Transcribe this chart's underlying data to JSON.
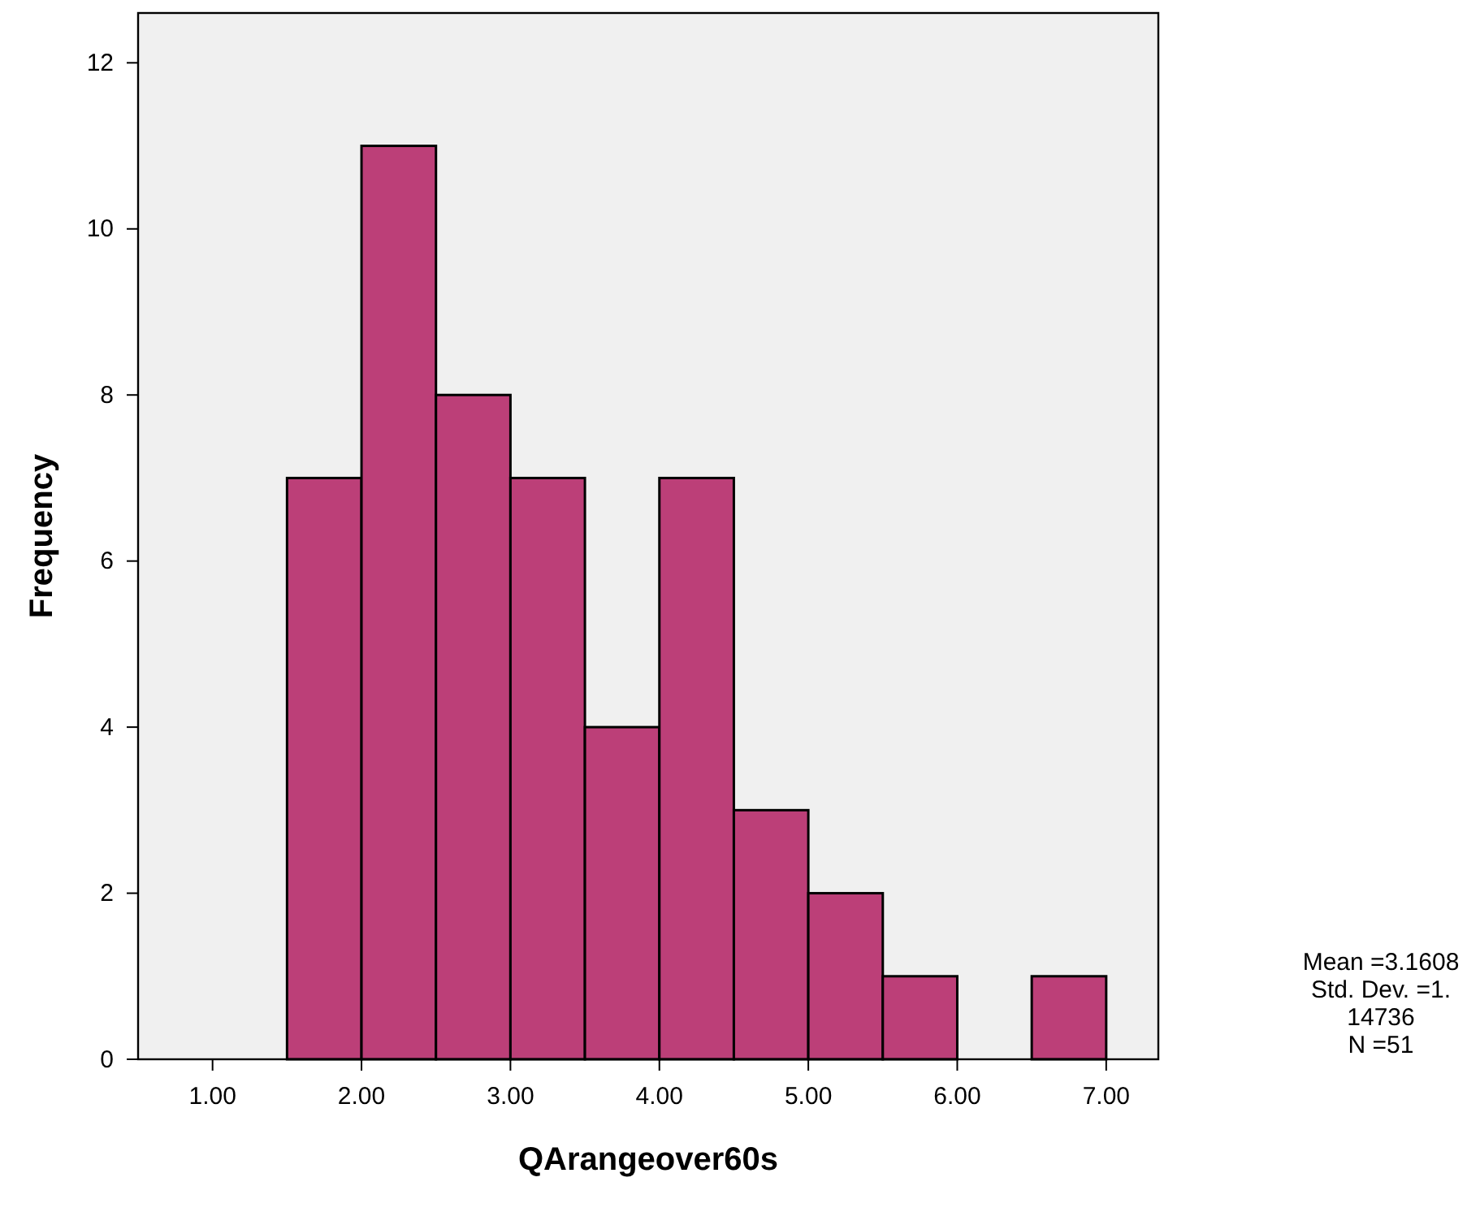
{
  "chart_data": {
    "type": "histogram",
    "xlabel": "QArangeover60s",
    "ylabel": "Frequency",
    "bins": [
      1.5,
      2,
      2.5,
      3,
      3.5,
      4,
      4.5,
      5,
      5.5,
      6,
      6.5,
      7
    ],
    "values": [
      7,
      11,
      8,
      7,
      4,
      7,
      3,
      2,
      1,
      0,
      1
    ],
    "color": "#bc3f78",
    "xlim": [
      0.5,
      7.35
    ],
    "xticks": [
      {
        "value": 1,
        "label": "1.00"
      },
      {
        "value": 2,
        "label": "2.00"
      },
      {
        "value": 3,
        "label": "3.00"
      },
      {
        "value": 4,
        "label": "4.00"
      },
      {
        "value": 5,
        "label": "5.00"
      },
      {
        "value": 6,
        "label": "6.00"
      },
      {
        "value": 7,
        "label": "7.00"
      }
    ],
    "ylim": [
      0,
      12.6
    ],
    "yticks": [
      0,
      2,
      4,
      6,
      8,
      10,
      12
    ],
    "annotations": [
      "Mean =3.1608\nStd. Dev. =1.\n14736\nN =51"
    ]
  }
}
